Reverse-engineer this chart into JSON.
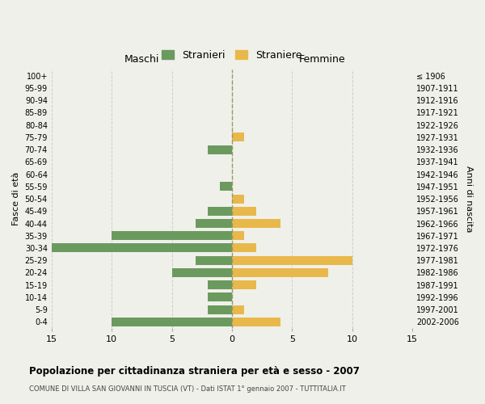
{
  "age_groups": [
    "100+",
    "95-99",
    "90-94",
    "85-89",
    "80-84",
    "75-79",
    "70-74",
    "65-69",
    "60-64",
    "55-59",
    "50-54",
    "45-49",
    "40-44",
    "35-39",
    "30-34",
    "25-29",
    "20-24",
    "15-19",
    "10-14",
    "5-9",
    "0-4"
  ],
  "birth_years": [
    "≤ 1906",
    "1907-1911",
    "1912-1916",
    "1917-1921",
    "1922-1926",
    "1927-1931",
    "1932-1936",
    "1937-1941",
    "1942-1946",
    "1947-1951",
    "1952-1956",
    "1957-1961",
    "1962-1966",
    "1967-1971",
    "1972-1976",
    "1977-1981",
    "1982-1986",
    "1987-1991",
    "1992-1996",
    "1997-2001",
    "2002-2006"
  ],
  "maschi": [
    0,
    0,
    0,
    0,
    0,
    0,
    2,
    0,
    0,
    1,
    0,
    2,
    3,
    10,
    15,
    3,
    5,
    2,
    2,
    2,
    10
  ],
  "femmine": [
    0,
    0,
    0,
    0,
    0,
    1,
    0,
    0,
    0,
    0,
    1,
    2,
    4,
    1,
    2,
    10,
    8,
    2,
    0,
    1,
    4
  ],
  "maschi_color": "#6b9a5e",
  "femmine_color": "#e8b84b",
  "background_color": "#f0f0eb",
  "grid_color": "#cccccc",
  "center_line_color": "#999966",
  "title": "Popolazione per cittadinanza straniera per età e sesso - 2007",
  "subtitle": "COMUNE DI VILLA SAN GIOVANNI IN TUSCIA (VT) - Dati ISTAT 1° gennaio 2007 - TUTTITALIA.IT",
  "xlabel_left": "Maschi",
  "xlabel_right": "Femmine",
  "ylabel_left": "Fasce di età",
  "ylabel_right": "Anni di nascita",
  "legend_maschi": "Stranieri",
  "legend_femmine": "Straniere",
  "xlim": 15
}
